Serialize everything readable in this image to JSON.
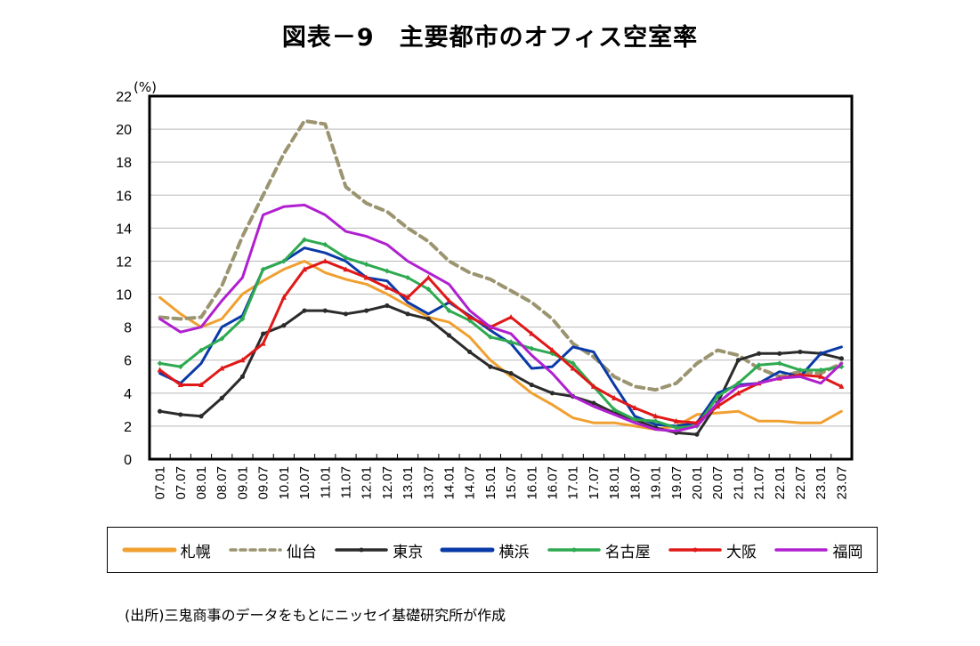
{
  "title": "図表－9　主要都市のオフィス空室率",
  "source_note": "(出所)三鬼商事のデータをもとにニッセイ基礎研究所が作成",
  "chart_data": {
    "type": "line",
    "title": "図表－9　主要都市のオフィス空室率",
    "ylabel": "(%)",
    "xlabel": "",
    "ylim": [
      0,
      22
    ],
    "yticks": [
      0,
      2,
      4,
      6,
      8,
      10,
      12,
      14,
      16,
      18,
      20,
      22
    ],
    "grid": true,
    "legend_position": "bottom",
    "x": [
      "07.01",
      "07.07",
      "08.01",
      "08.07",
      "09.01",
      "09.07",
      "10.01",
      "10.07",
      "11.01",
      "11.07",
      "12.01",
      "12.07",
      "13.01",
      "13.07",
      "14.01",
      "14.07",
      "15.01",
      "15.07",
      "16.01",
      "16.07",
      "17.01",
      "17.07",
      "18.01",
      "18.07",
      "19.01",
      "19.07",
      "20.01",
      "20.07",
      "21.01",
      "21.07",
      "22.01",
      "22.07",
      "23.01",
      "23.07"
    ],
    "series": [
      {
        "name": "札幌",
        "color": "#F0A030",
        "style": "solid",
        "marker": "none",
        "values": [
          9.8,
          8.8,
          8.0,
          8.5,
          10.0,
          10.8,
          11.5,
          12.0,
          11.3,
          10.9,
          10.6,
          10.0,
          9.3,
          8.6,
          8.3,
          7.4,
          6.0,
          5.0,
          4.0,
          3.3,
          2.5,
          2.2,
          2.2,
          2.0,
          1.8,
          2.0,
          2.7,
          2.8,
          2.9,
          2.3,
          2.3,
          2.2,
          2.2,
          2.9
        ]
      },
      {
        "name": "仙台",
        "color": "#9B9470",
        "style": "dashed",
        "marker": "none",
        "values": [
          8.6,
          8.5,
          8.6,
          10.5,
          13.5,
          16.0,
          18.5,
          20.5,
          20.3,
          16.5,
          15.5,
          15.0,
          14.0,
          13.2,
          12.0,
          11.3,
          10.9,
          10.2,
          9.5,
          8.5,
          7.0,
          6.2,
          5.0,
          4.4,
          4.2,
          4.6,
          5.8,
          6.6,
          6.3,
          5.5,
          5.0,
          5.3,
          5.2,
          5.8
        ]
      },
      {
        "name": "東京",
        "color": "#2B2B2B",
        "style": "solid",
        "marker": "circle",
        "values": [
          2.9,
          2.7,
          2.6,
          3.7,
          5.0,
          7.6,
          8.1,
          9.0,
          9.0,
          8.8,
          9.0,
          9.3,
          8.8,
          8.5,
          7.5,
          6.5,
          5.6,
          5.2,
          4.5,
          4.0,
          3.8,
          3.4,
          2.8,
          2.4,
          1.9,
          1.6,
          1.5,
          3.4,
          6.0,
          6.4,
          6.4,
          6.5,
          6.4,
          6.1
        ]
      },
      {
        "name": "横浜",
        "color": "#0A3AA8",
        "style": "solid",
        "marker": "none",
        "values": [
          5.2,
          4.6,
          5.8,
          8.0,
          8.7,
          11.5,
          12.0,
          12.8,
          12.5,
          12.0,
          11.0,
          10.8,
          9.5,
          8.8,
          9.5,
          8.7,
          7.8,
          7.0,
          5.5,
          5.6,
          6.8,
          6.5,
          4.5,
          2.6,
          2.1,
          2.0,
          2.2,
          4.0,
          4.5,
          4.6,
          5.3,
          5.0,
          6.4,
          6.8
        ]
      },
      {
        "name": "名古屋",
        "color": "#2EAA50",
        "style": "solid",
        "marker": "diamond",
        "values": [
          5.8,
          5.6,
          6.6,
          7.3,
          8.5,
          11.5,
          12.0,
          13.3,
          13.0,
          12.2,
          11.8,
          11.4,
          11.0,
          10.3,
          9.0,
          8.4,
          7.4,
          7.1,
          6.7,
          6.4,
          5.8,
          4.4,
          3.0,
          2.4,
          2.3,
          1.9,
          2.0,
          3.8,
          4.6,
          5.7,
          5.8,
          5.4,
          5.4,
          5.6
        ]
      },
      {
        "name": "大阪",
        "color": "#E01818",
        "style": "solid",
        "marker": "triangle",
        "values": [
          5.4,
          4.5,
          4.5,
          5.5,
          6.0,
          7.0,
          9.8,
          11.5,
          12.0,
          11.5,
          11.0,
          10.4,
          9.8,
          11.0,
          9.6,
          8.6,
          8.0,
          8.6,
          7.6,
          6.6,
          5.5,
          4.4,
          3.7,
          3.1,
          2.6,
          2.3,
          2.2,
          3.2,
          4.0,
          4.6,
          4.9,
          5.1,
          5.0,
          4.4
        ]
      },
      {
        "name": "福岡",
        "color": "#B020D0",
        "style": "solid",
        "marker": "none",
        "values": [
          8.5,
          7.7,
          8.0,
          9.6,
          11.0,
          14.8,
          15.3,
          15.4,
          14.8,
          13.8,
          13.5,
          13.0,
          12.0,
          11.3,
          10.6,
          9.0,
          8.0,
          7.6,
          6.3,
          5.2,
          3.8,
          3.2,
          2.7,
          2.2,
          1.8,
          1.7,
          2.0,
          3.4,
          4.4,
          4.6,
          4.9,
          5.0,
          4.6,
          5.8
        ]
      }
    ]
  }
}
